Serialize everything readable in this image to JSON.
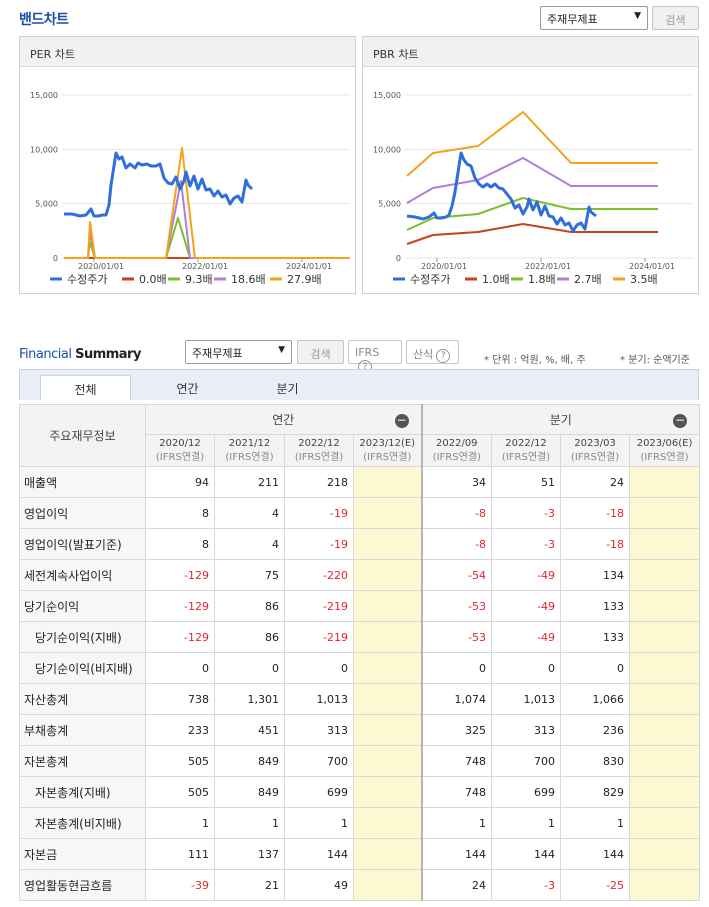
{
  "header": {
    "title": "밴드차트",
    "select_value": "주재무제표",
    "search_label": "검색"
  },
  "per_chart": {
    "title": "PER 차트",
    "y_ticks": [
      "15,000",
      "10,000",
      "5,000",
      "0"
    ],
    "x_ticks": [
      "2020/01/01",
      "2022/01/01",
      "2024/01/01"
    ],
    "legend": [
      {
        "name": "수정주가",
        "color": "#2f6fdc"
      },
      {
        "name": "0.0배",
        "color": "#c8421a"
      },
      {
        "name": "9.3배",
        "color": "#7cbf2a"
      },
      {
        "name": "18.6배",
        "color": "#b07fd8"
      },
      {
        "name": "27.9배",
        "color": "#f5a11a"
      }
    ]
  },
  "pbr_chart": {
    "title": "PBR 차트",
    "y_ticks": [
      "15,000",
      "10,000",
      "5,000",
      "0"
    ],
    "x_ticks": [
      "2020/01/01",
      "2022/01/01",
      "2024/01/01"
    ],
    "legend": [
      {
        "name": "수정주가",
        "color": "#2f6fdc"
      },
      {
        "name": "1.0배",
        "color": "#c8421a"
      },
      {
        "name": "1.8배",
        "color": "#7cbf2a"
      },
      {
        "name": "2.7배",
        "color": "#b07fd8"
      },
      {
        "name": "3.5배",
        "color": "#f5a11a"
      }
    ]
  },
  "fs": {
    "title_a": "Financial",
    "title_b": "Summary",
    "select_value": "주재무제표",
    "search_label": "검색",
    "ifrs_label": "IFRS",
    "calc_label": "산식",
    "unit_note": "* 단위 : 억원, %, 배, 주",
    "period_note": "* 분기: 순액기준",
    "tabs": [
      "전체",
      "연간",
      "분기"
    ],
    "row_header": "주요재무정보",
    "group_annual": "연간",
    "group_quarter": "분기",
    "columns": [
      {
        "period": "2020/12",
        "basis": "(IFRS연결)"
      },
      {
        "period": "2021/12",
        "basis": "(IFRS연결)"
      },
      {
        "period": "2022/12",
        "basis": "(IFRS연결)"
      },
      {
        "period": "2023/12(E)",
        "basis": "(IFRS연결)"
      },
      {
        "period": "2022/09",
        "basis": "(IFRS연결)"
      },
      {
        "period": "2022/12",
        "basis": "(IFRS연결)"
      },
      {
        "period": "2023/03",
        "basis": "(IFRS연결)"
      },
      {
        "period": "2023/06(E)",
        "basis": "(IFRS연결)"
      }
    ],
    "rows": [
      {
        "label": "매출액",
        "indent": false,
        "values": [
          "94",
          "211",
          "218",
          "",
          "34",
          "51",
          "24",
          ""
        ]
      },
      {
        "label": "영업이익",
        "indent": false,
        "values": [
          "8",
          "4",
          "-19",
          "",
          "-8",
          "-3",
          "-18",
          ""
        ]
      },
      {
        "label": "영업이익(발표기준)",
        "indent": false,
        "values": [
          "8",
          "4",
          "-19",
          "",
          "-8",
          "-3",
          "-18",
          ""
        ]
      },
      {
        "label": "세전계속사업이익",
        "indent": false,
        "values": [
          "-129",
          "75",
          "-220",
          "",
          "-54",
          "-49",
          "134",
          ""
        ]
      },
      {
        "label": "당기순이익",
        "indent": false,
        "values": [
          "-129",
          "86",
          "-219",
          "",
          "-53",
          "-49",
          "133",
          ""
        ]
      },
      {
        "label": "당기순이익(지배)",
        "indent": true,
        "values": [
          "-129",
          "86",
          "-219",
          "",
          "-53",
          "-49",
          "133",
          ""
        ]
      },
      {
        "label": "당기순이익(비지배)",
        "indent": true,
        "values": [
          "0",
          "0",
          "0",
          "",
          "0",
          "0",
          "0",
          ""
        ]
      },
      {
        "label": "자산총계",
        "indent": false,
        "values": [
          "738",
          "1,301",
          "1,013",
          "",
          "1,074",
          "1,013",
          "1,066",
          ""
        ]
      },
      {
        "label": "부채총계",
        "indent": false,
        "values": [
          "233",
          "451",
          "313",
          "",
          "325",
          "313",
          "236",
          ""
        ]
      },
      {
        "label": "자본총계",
        "indent": false,
        "values": [
          "505",
          "849",
          "700",
          "",
          "748",
          "700",
          "830",
          ""
        ]
      },
      {
        "label": "자본총계(지배)",
        "indent": true,
        "values": [
          "505",
          "849",
          "699",
          "",
          "748",
          "699",
          "829",
          ""
        ]
      },
      {
        "label": "자본총계(비지배)",
        "indent": true,
        "values": [
          "1",
          "1",
          "1",
          "",
          "1",
          "1",
          "1",
          ""
        ]
      },
      {
        "label": "자본금",
        "indent": false,
        "values": [
          "111",
          "137",
          "144",
          "",
          "144",
          "144",
          "144",
          ""
        ]
      },
      {
        "label": "영업활동현금흐름",
        "indent": false,
        "values": [
          "-39",
          "21",
          "49",
          "",
          "24",
          "-3",
          "-25",
          ""
        ]
      }
    ]
  }
}
